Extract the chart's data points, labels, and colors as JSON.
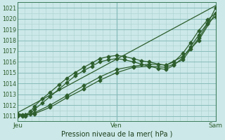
{
  "xlabel": "Pression niveau de la mer( hPa )",
  "bg_color": "#cce8e8",
  "grid_major_color": "#88bbbb",
  "grid_minor_color": "#aad0d0",
  "line_color": "#2d5e2d",
  "ylim": [
    1010.5,
    1021.5
  ],
  "yticks": [
    1011,
    1012,
    1013,
    1014,
    1015,
    1016,
    1017,
    1018,
    1019,
    1020,
    1021
  ],
  "xtick_labels": [
    "Jeu",
    "Ven",
    "Sam"
  ],
  "xtick_positions": [
    0,
    1,
    2
  ],
  "x_total": 2.0,
  "series": [
    {
      "x": [
        0.0,
        2.0
      ],
      "y": [
        1011.3,
        1021.2
      ],
      "marker": "None",
      "markersize": 0,
      "linewidth": 0.9
    },
    {
      "x": [
        0.0,
        0.08,
        0.17,
        0.33,
        0.5,
        0.67,
        0.83,
        1.0,
        1.17,
        1.33,
        1.5,
        1.67,
        1.83,
        2.0
      ],
      "y": [
        1011.1,
        1011.1,
        1011.3,
        1012.0,
        1012.9,
        1013.8,
        1014.6,
        1015.3,
        1015.6,
        1015.8,
        1015.7,
        1016.5,
        1018.0,
        1020.5
      ],
      "marker": "D",
      "markersize": 2.5,
      "linewidth": 0.9
    },
    {
      "x": [
        0.0,
        0.05,
        0.08,
        0.13,
        0.17,
        0.25,
        0.33,
        0.42,
        0.5,
        0.58,
        0.67,
        0.75,
        0.83,
        0.92,
        1.0,
        1.08,
        1.17,
        1.25,
        1.33,
        1.42,
        1.5,
        1.58,
        1.67,
        1.75,
        1.83,
        1.92,
        2.0
      ],
      "y": [
        1011.2,
        1011.1,
        1011.1,
        1011.4,
        1011.9,
        1012.6,
        1013.2,
        1013.9,
        1014.5,
        1015.0,
        1015.5,
        1015.9,
        1016.3,
        1016.5,
        1016.6,
        1016.5,
        1016.3,
        1016.1,
        1016.0,
        1015.8,
        1015.7,
        1016.0,
        1016.8,
        1017.8,
        1018.9,
        1019.9,
        1020.5
      ],
      "marker": "D",
      "markersize": 2.5,
      "linewidth": 0.9
    },
    {
      "x": [
        0.0,
        0.05,
        0.08,
        0.13,
        0.17,
        0.25,
        0.33,
        0.42,
        0.5,
        0.58,
        0.67,
        0.75,
        0.83,
        0.92,
        1.0,
        1.08,
        1.17,
        1.25,
        1.33,
        1.42,
        1.5,
        1.58,
        1.67,
        1.75,
        1.83,
        1.92,
        2.0
      ],
      "y": [
        1011.0,
        1011.0,
        1011.0,
        1011.2,
        1011.6,
        1012.2,
        1012.8,
        1013.5,
        1014.1,
        1014.7,
        1015.2,
        1015.6,
        1016.0,
        1016.2,
        1016.3,
        1016.2,
        1016.0,
        1015.8,
        1015.6,
        1015.4,
        1015.3,
        1015.7,
        1016.4,
        1017.4,
        1018.5,
        1019.6,
        1020.2
      ],
      "marker": "D",
      "markersize": 2.5,
      "linewidth": 0.9
    },
    {
      "x": [
        0.0,
        0.08,
        0.17,
        0.33,
        0.5,
        0.67,
        0.83,
        1.0,
        1.17,
        1.33,
        1.5,
        1.58,
        1.67,
        1.75,
        1.83,
        1.92,
        2.0
      ],
      "y": [
        1011.2,
        1011.1,
        1011.2,
        1011.8,
        1012.7,
        1013.5,
        1014.3,
        1015.0,
        1015.5,
        1015.6,
        1015.5,
        1015.8,
        1016.2,
        1017.2,
        1018.2,
        1019.5,
        1021.0
      ],
      "marker": "D",
      "markersize": 2.5,
      "linewidth": 0.9
    }
  ]
}
